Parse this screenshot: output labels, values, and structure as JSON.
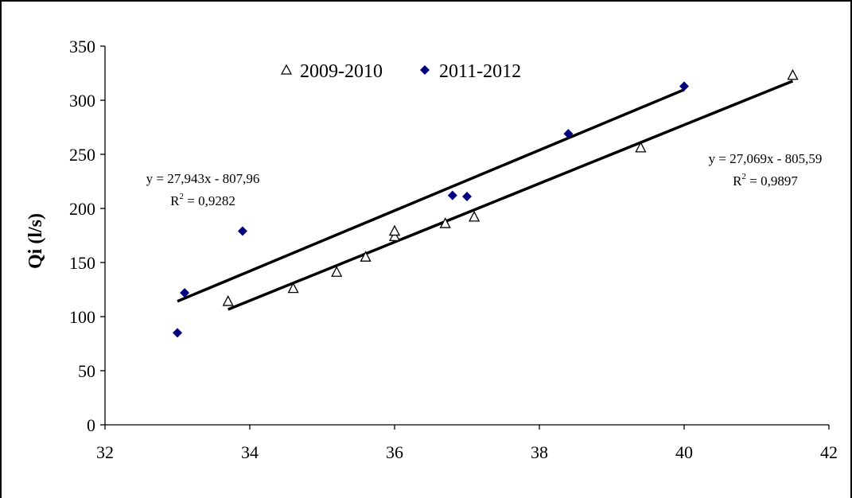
{
  "chart_data": {
    "type": "scatter",
    "title": "",
    "xlabel": "",
    "ylabel": "Qi (l/s)",
    "xlim": [
      32,
      42
    ],
    "ylim": [
      0,
      350
    ],
    "x_ticks": [
      "32",
      "34",
      "36",
      "38",
      "40",
      "42"
    ],
    "y_ticks": [
      "0",
      "50",
      "100",
      "150",
      "200",
      "250",
      "300",
      "350"
    ],
    "grid": false,
    "legend_position": "top",
    "series": [
      {
        "name": "2009-2010",
        "marker": "triangle-open",
        "color": "#000000",
        "points": [
          {
            "x": 33.7,
            "y": 114
          },
          {
            "x": 34.6,
            "y": 126
          },
          {
            "x": 35.2,
            "y": 141
          },
          {
            "x": 35.6,
            "y": 155
          },
          {
            "x": 36.0,
            "y": 174
          },
          {
            "x": 36.0,
            "y": 179
          },
          {
            "x": 36.7,
            "y": 186
          },
          {
            "x": 37.1,
            "y": 192
          },
          {
            "x": 39.4,
            "y": 256
          },
          {
            "x": 41.5,
            "y": 323
          }
        ],
        "trendline": {
          "x_range": [
            33.7,
            41.5
          ],
          "slope": 27.069,
          "intercept": -805.59
        },
        "equation": "y = 27,069x - 805,59",
        "r2_prefix": "R",
        "r2_exp": "2",
        "r2_value": " = 0,9897"
      },
      {
        "name": "2011-2012",
        "marker": "diamond",
        "color": "#00007F",
        "points": [
          {
            "x": 33.0,
            "y": 85
          },
          {
            "x": 33.1,
            "y": 122
          },
          {
            "x": 33.9,
            "y": 179
          },
          {
            "x": 36.8,
            "y": 212
          },
          {
            "x": 37.0,
            "y": 211
          },
          {
            "x": 38.4,
            "y": 269
          },
          {
            "x": 40.0,
            "y": 313
          }
        ],
        "trendline": {
          "x_range": [
            33.0,
            40.0
          ],
          "slope": 27.943,
          "intercept": -807.96
        },
        "equation": "y = 27,943x - 807,96",
        "r2_prefix": "R",
        "r2_exp": "2",
        "r2_value": " = 0,9282"
      }
    ]
  }
}
